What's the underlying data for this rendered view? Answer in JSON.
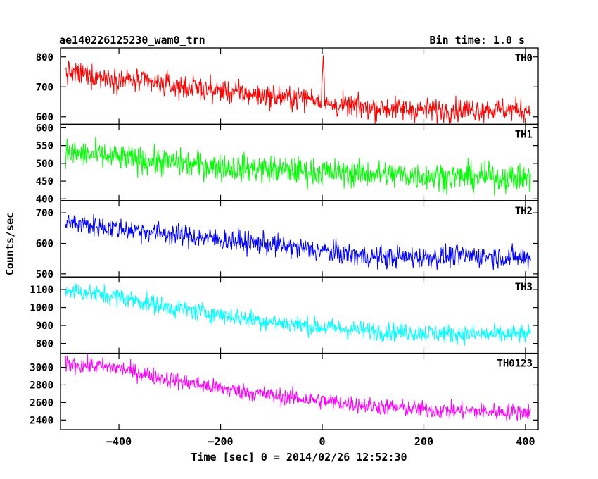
{
  "header": {
    "title": "ae140226125230_wam0_trn",
    "bin_time": "Bin time: 1.0 s"
  },
  "axes": {
    "xlabel": "Time [sec] 0 = 2014/02/26 12:52:30",
    "ylabel": "Counts/sec"
  },
  "chart_data": {
    "type": "line",
    "x_range": [
      -515,
      425
    ],
    "x_ticks": [
      -400,
      -200,
      0,
      200,
      400
    ],
    "x_tick_labels": [
      "−400",
      "−200",
      "0",
      "200",
      "400"
    ],
    "grid": false,
    "panels": [
      {
        "name": "TH0",
        "color": "#ff0000",
        "ylim": [
          575,
          830
        ],
        "yticks": [
          600,
          700,
          800
        ],
        "trend": [
          [
            -505,
            748
          ],
          [
            -300,
            705
          ],
          [
            -100,
            668
          ],
          [
            -5,
            660
          ],
          [
            5,
            640
          ],
          [
            100,
            630
          ],
          [
            200,
            622
          ],
          [
            300,
            625
          ],
          [
            410,
            622
          ]
        ],
        "noise": 28,
        "spike": {
          "x": 2,
          "y": 810
        }
      },
      {
        "name": "TH1",
        "color": "#00ff00",
        "ylim": [
          395,
          610
        ],
        "yticks": [
          400,
          450,
          500,
          550,
          600
        ],
        "trend": [
          [
            -505,
            530
          ],
          [
            -400,
            515
          ],
          [
            -200,
            490
          ],
          [
            0,
            475
          ],
          [
            200,
            465
          ],
          [
            410,
            458
          ]
        ],
        "noise": 28
      },
      {
        "name": "TH2",
        "color": "#0000ff",
        "ylim": [
          490,
          740
        ],
        "yticks": [
          500,
          600,
          700
        ],
        "trend": [
          [
            -505,
            668
          ],
          [
            -300,
            630
          ],
          [
            -100,
            595
          ],
          [
            0,
            575
          ],
          [
            100,
            555
          ],
          [
            200,
            555
          ],
          [
            300,
            560
          ],
          [
            410,
            552
          ]
        ],
        "noise": 26
      },
      {
        "name": "TH3",
        "color": "#00ffff",
        "ylim": [
          745,
          1170
        ],
        "yticks": [
          800,
          900,
          1000,
          1100
        ],
        "trend": [
          [
            -505,
            1100
          ],
          [
            -400,
            1060
          ],
          [
            -300,
            1000
          ],
          [
            -200,
            960
          ],
          [
            -100,
            920
          ],
          [
            0,
            890
          ],
          [
            100,
            870
          ],
          [
            200,
            860
          ],
          [
            300,
            850
          ],
          [
            410,
            850
          ]
        ],
        "noise": 38
      },
      {
        "name": "TH0123",
        "color": "#ff00ff",
        "ylim": [
          2290,
          3160
        ],
        "yticks": [
          2400,
          2600,
          2800,
          3000
        ],
        "trend": [
          [
            -505,
            3040
          ],
          [
            -400,
            2990
          ],
          [
            -300,
            2860
          ],
          [
            -200,
            2760
          ],
          [
            -100,
            2680
          ],
          [
            0,
            2620
          ],
          [
            100,
            2560
          ],
          [
            200,
            2520
          ],
          [
            300,
            2500
          ],
          [
            410,
            2490
          ]
        ],
        "noise": 70
      }
    ]
  }
}
